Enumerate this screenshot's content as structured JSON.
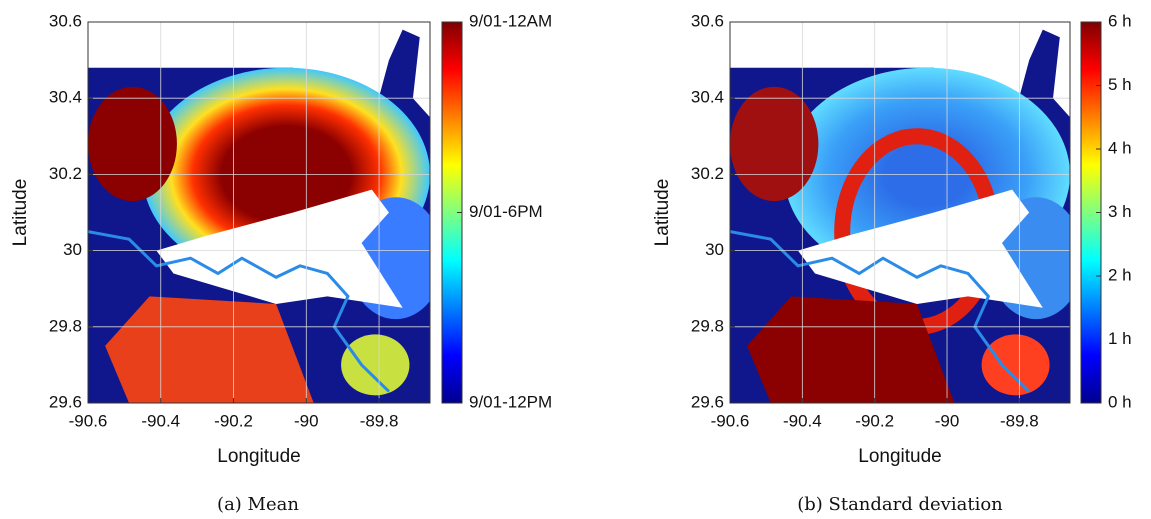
{
  "chart_data": [
    {
      "type": "heatmap",
      "caption": "(a) Mean",
      "xlabel": "Longitude",
      "ylabel": "Latitude",
      "xlim": [
        -90.6,
        -89.66
      ],
      "xticks": [
        -90.6,
        -90.4,
        -90.2,
        -90,
        -89.8
      ],
      "ylim": [
        29.6,
        30.6
      ],
      "yticks": [
        29.6,
        29.8,
        30,
        30.2,
        30.4,
        30.6
      ],
      "grid": true,
      "clim": [
        12,
        24
      ],
      "cticks": [
        {
          "value": 12,
          "label": "9/01-12PM"
        },
        {
          "value": 18,
          "label": "9/01-6PM"
        },
        {
          "value": 24,
          "label": "9/01-12AM"
        }
      ]
    },
    {
      "type": "heatmap",
      "caption": "(b) Standard deviation",
      "xlabel": "Longitude",
      "ylabel": "Latitude",
      "xlim": [
        -90.6,
        -89.66
      ],
      "xticks": [
        -90.6,
        -90.4,
        -90.2,
        -90,
        -89.8
      ],
      "ylim": [
        29.6,
        30.6
      ],
      "yticks": [
        29.6,
        29.8,
        30,
        30.2,
        30.4,
        30.6
      ],
      "grid": true,
      "clim": [
        0,
        6
      ],
      "cticks": [
        {
          "value": 0,
          "label": "0 h"
        },
        {
          "value": 1,
          "label": "1 h"
        },
        {
          "value": 2,
          "label": "2 h"
        },
        {
          "value": 3,
          "label": "3 h"
        },
        {
          "value": 4,
          "label": "4 h"
        },
        {
          "value": 5,
          "label": "5 h"
        },
        {
          "value": 6,
          "label": "6 h"
        }
      ]
    }
  ]
}
